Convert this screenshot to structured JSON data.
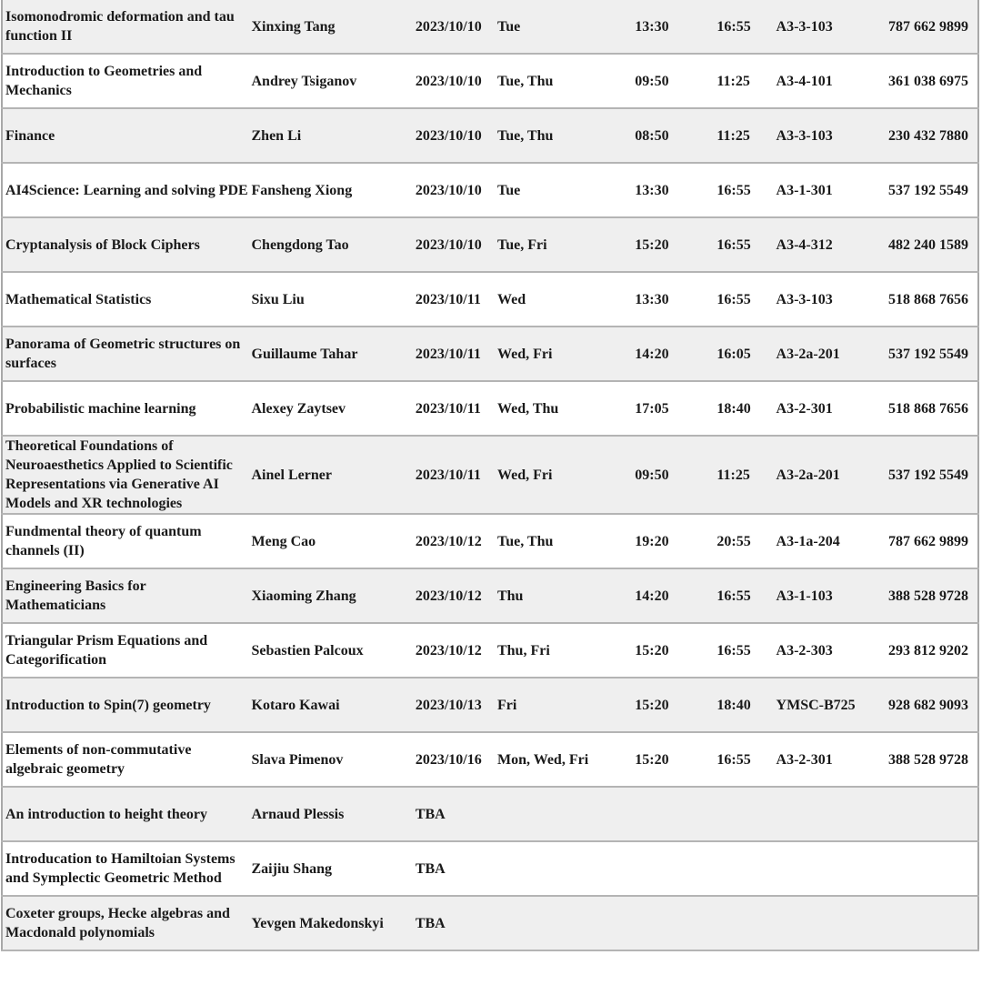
{
  "rows": [
    {
      "title": "Isomonodromic deformation and tau function II",
      "instructor": "Xinxing Tang",
      "date": "2023/10/10",
      "days": "Tue",
      "start": "13:30",
      "end": "16:55",
      "room": "A3-3-103",
      "phone": "787 662 9899"
    },
    {
      "title": "Introduction to Geometries and Mechanics",
      "instructor": "Andrey Tsiganov",
      "date": "2023/10/10",
      "days": "Tue, Thu",
      "start": "09:50",
      "end": "11:25",
      "room": "A3-4-101",
      "phone": "361 038 6975"
    },
    {
      "title": "Finance",
      "instructor": "Zhen Li",
      "date": "2023/10/10",
      "days": "Tue, Thu",
      "start": "08:50",
      "end": "11:25",
      "room": "A3-3-103",
      "phone": "230 432 7880"
    },
    {
      "title": "AI4Science: Learning and solving PDE",
      "instructor": "Fansheng Xiong",
      "date": "2023/10/10",
      "days": "Tue",
      "start": "13:30",
      "end": "16:55",
      "room": "A3-1-301",
      "phone": "537 192 5549"
    },
    {
      "title": "Cryptanalysis of Block Ciphers",
      "instructor": "Chengdong Tao",
      "date": "2023/10/10",
      "days": "Tue, Fri",
      "start": "15:20",
      "end": "16:55",
      "room": "A3-4-312",
      "phone": "482 240 1589"
    },
    {
      "title": "Mathematical Statistics",
      "instructor": "Sixu Liu",
      "date": "2023/10/11",
      "days": "Wed",
      "start": "13:30",
      "end": "16:55",
      "room": "A3-3-103",
      "phone": "518 868 7656"
    },
    {
      "title": "Panorama of Geometric structures on surfaces",
      "instructor": "Guillaume Tahar",
      "date": "2023/10/11",
      "days": "Wed, Fri",
      "start": "14:20",
      "end": "16:05",
      "room": "A3-2a-201",
      "phone": "537 192 5549"
    },
    {
      "title": "Probabilistic machine learning",
      "instructor": "Alexey Zaytsev",
      "date": "2023/10/11",
      "days": "Wed, Thu",
      "start": "17:05",
      "end": "18:40",
      "room": "A3-2-301",
      "phone": "518 868 7656"
    },
    {
      "title": "Theoretical Foundations of Neuroaesthetics Applied to Scientific Representations via Generative AI Models and XR technologies",
      "instructor": "Ainel Lerner",
      "date": "2023/10/11",
      "days": "Wed, Fri",
      "start": "09:50",
      "end": "11:25",
      "room": "A3-2a-201",
      "phone": "537 192 5549"
    },
    {
      "title": "Fundmental theory of quantum channels (II)",
      "instructor": "Meng Cao",
      "date": "2023/10/12",
      "days": "Tue, Thu",
      "start": "19:20",
      "end": "20:55",
      "room": "A3-1a-204",
      "phone": "787 662 9899"
    },
    {
      "title": "Engineering Basics for Mathematicians",
      "instructor": "Xiaoming Zhang",
      "date": "2023/10/12",
      "days": "Thu",
      "start": "14:20",
      "end": "16:55",
      "room": "A3-1-103",
      "phone": "388 528 9728"
    },
    {
      "title": "Triangular Prism Equations and Categorification",
      "instructor": "Sebastien Palcoux",
      "date": "2023/10/12",
      "days": "Thu, Fri",
      "start": "15:20",
      "end": "16:55",
      "room": "A3-2-303",
      "phone": "293 812 9202"
    },
    {
      "title": "Introduction to Spin(7) geometry",
      "instructor": "Kotaro Kawai",
      "date": "2023/10/13",
      "days": "Fri",
      "start": "15:20",
      "end": "18:40",
      "room": "YMSC-B725",
      "phone": "928 682 9093"
    },
    {
      "title": "Elements of non-commutative algebraic geometry",
      "instructor": "Slava Pimenov",
      "date": "2023/10/16",
      "days": "Mon, Wed, Fri",
      "start": "15:20",
      "end": "16:55",
      "room": "A3-2-301",
      "phone": "388 528 9728"
    },
    {
      "title": "An introduction to height theory",
      "instructor": "Arnaud Plessis",
      "date": "TBA",
      "days": "",
      "start": "",
      "end": "",
      "room": "",
      "phone": ""
    },
    {
      "title": "Introducation to Hamiltoian Systems and Symplectic Geometric Method",
      "instructor": "Zaijiu Shang",
      "date": "TBA",
      "days": "",
      "start": "",
      "end": "",
      "room": "",
      "phone": ""
    },
    {
      "title": "Coxeter groups, Hecke algebras and Macdonald polynomials",
      "instructor": "Yevgen Makedonskyi",
      "date": "TBA",
      "days": "",
      "start": "",
      "end": "",
      "room": "",
      "phone": ""
    }
  ]
}
